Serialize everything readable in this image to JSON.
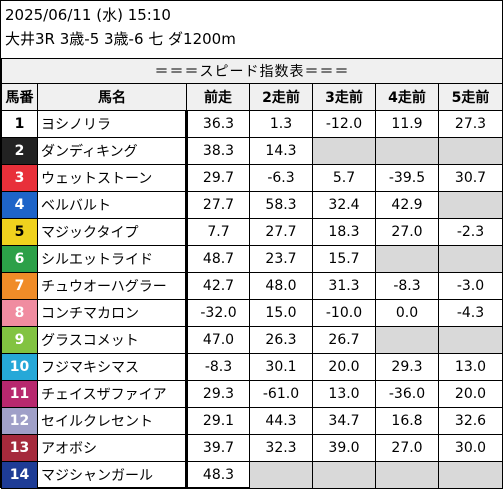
{
  "header": {
    "date_line": "2025/06/11 (水) 15:10",
    "race_line": "大井3R 3歳-5 3歳-6 七 ダ1200m"
  },
  "table_title": "＝＝＝スピード指数表＝＝＝",
  "columns": [
    "馬番",
    "馬名",
    "前走",
    "2走前",
    "3走前",
    "4走前",
    "5走前"
  ],
  "rows": [
    {
      "num": "1",
      "name": "ヨシノリラ",
      "vals": [
        "36.3",
        "1.3",
        "-12.0",
        "11.9",
        "27.3"
      ],
      "bg": "#ffffff",
      "fg": "#000000"
    },
    {
      "num": "2",
      "name": "ダンディキング",
      "vals": [
        "38.3",
        "14.3",
        "",
        "",
        ""
      ],
      "bg": "#222222",
      "fg": "#ffffff"
    },
    {
      "num": "3",
      "name": "ウェットストーン",
      "vals": [
        "29.7",
        "-6.3",
        "5.7",
        "-39.5",
        "30.7"
      ],
      "bg": "#e8303a",
      "fg": "#ffffff"
    },
    {
      "num": "4",
      "name": "ベルバルト",
      "vals": [
        "27.7",
        "58.3",
        "32.4",
        "42.9",
        ""
      ],
      "bg": "#1e64c8",
      "fg": "#ffffff"
    },
    {
      "num": "5",
      "name": "マジックタイプ",
      "vals": [
        "7.7",
        "27.7",
        "18.3",
        "27.0",
        "-2.3"
      ],
      "bg": "#f0d21e",
      "fg": "#000000"
    },
    {
      "num": "6",
      "name": "シルエットライド",
      "vals": [
        "48.7",
        "23.7",
        "15.7",
        "",
        ""
      ],
      "bg": "#2ca048",
      "fg": "#ffffff"
    },
    {
      "num": "7",
      "name": "チュウオーハグラー",
      "vals": [
        "42.7",
        "48.0",
        "31.3",
        "-8.3",
        "-3.0"
      ],
      "bg": "#f08c28",
      "fg": "#ffffff"
    },
    {
      "num": "8",
      "name": "コンチマカロン",
      "vals": [
        "-32.0",
        "15.0",
        "-10.0",
        "0.0",
        "-4.3"
      ],
      "bg": "#f08ca0",
      "fg": "#ffffff"
    },
    {
      "num": "9",
      "name": "グラスコメット",
      "vals": [
        "47.0",
        "26.3",
        "26.7",
        "",
        ""
      ],
      "bg": "#82c341",
      "fg": "#ffffff"
    },
    {
      "num": "10",
      "name": "フジマキシマス",
      "vals": [
        "-8.3",
        "30.1",
        "20.0",
        "29.3",
        "13.0"
      ],
      "bg": "#26a8d8",
      "fg": "#ffffff"
    },
    {
      "num": "11",
      "name": "チェイスザファイア",
      "vals": [
        "29.3",
        "-61.0",
        "13.0",
        "-36.0",
        "20.0"
      ],
      "bg": "#b8286e",
      "fg": "#ffffff"
    },
    {
      "num": "12",
      "name": "セイルクレセント",
      "vals": [
        "29.1",
        "44.3",
        "34.7",
        "16.8",
        "32.6"
      ],
      "bg": "#a0a0c8",
      "fg": "#ffffff"
    },
    {
      "num": "13",
      "name": "アオボシ",
      "vals": [
        "39.7",
        "32.3",
        "39.0",
        "27.0",
        "30.0"
      ],
      "bg": "#a52a3c",
      "fg": "#ffffff"
    },
    {
      "num": "14",
      "name": "マジシャンガール",
      "vals": [
        "48.3",
        "",
        "",
        "",
        ""
      ],
      "bg": "#1e3c96",
      "fg": "#ffffff"
    }
  ]
}
